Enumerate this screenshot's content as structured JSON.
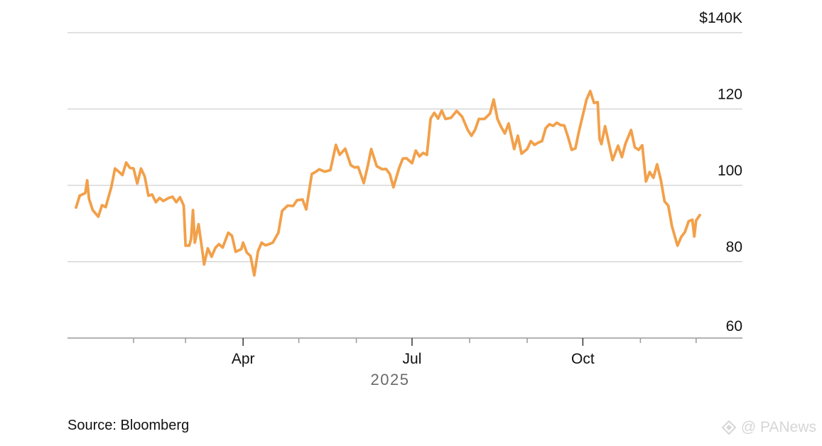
{
  "chart_data": {
    "type": "line",
    "title": "",
    "xlabel": "2025",
    "ylabel": "",
    "ylim": [
      60,
      140
    ],
    "y_ticks": [
      {
        "value": 140,
        "label": "$140K"
      },
      {
        "value": 120,
        "label": "120"
      },
      {
        "value": 100,
        "label": "100"
      },
      {
        "value": 80,
        "label": "80"
      },
      {
        "value": 60,
        "label": "60"
      }
    ],
    "x_range": [
      "2025-01-01",
      "2025-12-03"
    ],
    "x_ticks": [
      {
        "date": "2025-02-01",
        "label": ""
      },
      {
        "date": "2025-03-01",
        "label": ""
      },
      {
        "date": "2025-04-01",
        "label": "Apr"
      },
      {
        "date": "2025-05-01",
        "label": ""
      },
      {
        "date": "2025-06-01",
        "label": ""
      },
      {
        "date": "2025-07-01",
        "label": "Jul"
      },
      {
        "date": "2025-08-01",
        "label": ""
      },
      {
        "date": "2025-09-01",
        "label": ""
      },
      {
        "date": "2025-10-01",
        "label": "Oct"
      },
      {
        "date": "2025-11-01",
        "label": ""
      },
      {
        "date": "2025-12-01",
        "label": ""
      }
    ],
    "grid": true,
    "series": [
      {
        "color": "#f2a04a",
        "points": [
          [
            "2025-01-01",
            94.2
          ],
          [
            "2025-01-03",
            97.3
          ],
          [
            "2025-01-06",
            98.0
          ],
          [
            "2025-01-07",
            101.3
          ],
          [
            "2025-01-08",
            96.5
          ],
          [
            "2025-01-10",
            93.5
          ],
          [
            "2025-01-13",
            91.8
          ],
          [
            "2025-01-15",
            94.8
          ],
          [
            "2025-01-17",
            94.3
          ],
          [
            "2025-01-20",
            99.5
          ],
          [
            "2025-01-22",
            104.4
          ],
          [
            "2025-01-24",
            103.6
          ],
          [
            "2025-01-26",
            102.7
          ],
          [
            "2025-01-28",
            106.0
          ],
          [
            "2025-01-30",
            104.6
          ],
          [
            "2025-02-01",
            104.4
          ],
          [
            "2025-02-03",
            100.5
          ],
          [
            "2025-02-05",
            104.4
          ],
          [
            "2025-02-07",
            102.3
          ],
          [
            "2025-02-09",
            97.3
          ],
          [
            "2025-02-11",
            97.6
          ],
          [
            "2025-02-13",
            95.6
          ],
          [
            "2025-02-15",
            96.7
          ],
          [
            "2025-02-17",
            95.9
          ],
          [
            "2025-02-20",
            96.7
          ],
          [
            "2025-02-22",
            97.0
          ],
          [
            "2025-02-24",
            95.6
          ],
          [
            "2025-02-26",
            96.9
          ],
          [
            "2025-02-28",
            94.7
          ],
          [
            "2025-03-01",
            84.2
          ],
          [
            "2025-03-03",
            84.2
          ],
          [
            "2025-03-04",
            86.0
          ],
          [
            "2025-03-05",
            93.5
          ],
          [
            "2025-03-06",
            85.0
          ],
          [
            "2025-03-08",
            89.8
          ],
          [
            "2025-03-10",
            82.9
          ],
          [
            "2025-03-11",
            79.3
          ],
          [
            "2025-03-13",
            83.5
          ],
          [
            "2025-03-15",
            81.3
          ],
          [
            "2025-03-17",
            83.6
          ],
          [
            "2025-03-19",
            84.6
          ],
          [
            "2025-03-21",
            83.7
          ],
          [
            "2025-03-24",
            87.6
          ],
          [
            "2025-03-26",
            86.8
          ],
          [
            "2025-03-28",
            82.6
          ],
          [
            "2025-03-31",
            83.3
          ],
          [
            "2025-04-01",
            85.0
          ],
          [
            "2025-04-03",
            82.4
          ],
          [
            "2025-04-05",
            81.5
          ],
          [
            "2025-04-07",
            76.4
          ],
          [
            "2025-04-09",
            82.7
          ],
          [
            "2025-04-11",
            85.0
          ],
          [
            "2025-04-13",
            84.3
          ],
          [
            "2025-04-15",
            84.6
          ],
          [
            "2025-04-17",
            85.0
          ],
          [
            "2025-04-20",
            87.6
          ],
          [
            "2025-04-22",
            93.3
          ],
          [
            "2025-04-25",
            94.7
          ],
          [
            "2025-04-28",
            94.6
          ],
          [
            "2025-04-30",
            96.1
          ],
          [
            "2025-05-03",
            96.3
          ],
          [
            "2025-05-05",
            93.7
          ],
          [
            "2025-05-08",
            103.0
          ],
          [
            "2025-05-10",
            103.5
          ],
          [
            "2025-05-12",
            104.2
          ],
          [
            "2025-05-15",
            103.6
          ],
          [
            "2025-05-18",
            104.0
          ],
          [
            "2025-05-21",
            110.6
          ],
          [
            "2025-05-23",
            108.0
          ],
          [
            "2025-05-26",
            109.6
          ],
          [
            "2025-05-29",
            105.3
          ],
          [
            "2025-05-31",
            104.7
          ],
          [
            "2025-06-02",
            104.8
          ],
          [
            "2025-06-05",
            100.6
          ],
          [
            "2025-06-07",
            104.8
          ],
          [
            "2025-06-09",
            109.5
          ],
          [
            "2025-06-12",
            105.0
          ],
          [
            "2025-06-15",
            104.2
          ],
          [
            "2025-06-17",
            104.3
          ],
          [
            "2025-06-19",
            103.0
          ],
          [
            "2025-06-21",
            99.5
          ],
          [
            "2025-06-24",
            104.5
          ],
          [
            "2025-06-26",
            107.0
          ],
          [
            "2025-06-28",
            107.1
          ],
          [
            "2025-07-01",
            105.8
          ],
          [
            "2025-07-03",
            109.1
          ],
          [
            "2025-07-05",
            107.6
          ],
          [
            "2025-07-07",
            108.5
          ],
          [
            "2025-07-09",
            108.0
          ],
          [
            "2025-07-11",
            117.5
          ],
          [
            "2025-07-13",
            119.0
          ],
          [
            "2025-07-15",
            117.5
          ],
          [
            "2025-07-17",
            119.6
          ],
          [
            "2025-07-19",
            117.4
          ],
          [
            "2025-07-22",
            117.7
          ],
          [
            "2025-07-25",
            119.5
          ],
          [
            "2025-07-28",
            118.0
          ],
          [
            "2025-07-31",
            114.5
          ],
          [
            "2025-08-02",
            113.0
          ],
          [
            "2025-08-04",
            114.6
          ],
          [
            "2025-08-06",
            117.4
          ],
          [
            "2025-08-09",
            117.4
          ],
          [
            "2025-08-12",
            118.8
          ],
          [
            "2025-08-14",
            122.5
          ],
          [
            "2025-08-16",
            117.4
          ],
          [
            "2025-08-18",
            115.3
          ],
          [
            "2025-08-20",
            113.6
          ],
          [
            "2025-08-22",
            116.2
          ],
          [
            "2025-08-25",
            109.5
          ],
          [
            "2025-08-27",
            113.0
          ],
          [
            "2025-08-29",
            108.3
          ],
          [
            "2025-09-01",
            109.5
          ],
          [
            "2025-09-03",
            111.6
          ],
          [
            "2025-09-05",
            110.6
          ],
          [
            "2025-09-07",
            111.2
          ],
          [
            "2025-09-09",
            111.6
          ],
          [
            "2025-09-11",
            115.0
          ],
          [
            "2025-09-13",
            116.0
          ],
          [
            "2025-09-15",
            115.6
          ],
          [
            "2025-09-17",
            116.4
          ],
          [
            "2025-09-19",
            115.8
          ],
          [
            "2025-09-21",
            115.7
          ],
          [
            "2025-09-23",
            112.7
          ],
          [
            "2025-09-25",
            109.3
          ],
          [
            "2025-09-27",
            109.7
          ],
          [
            "2025-09-29",
            114.3
          ],
          [
            "2025-10-01",
            118.4
          ],
          [
            "2025-10-03",
            122.5
          ],
          [
            "2025-10-05",
            124.7
          ],
          [
            "2025-10-07",
            121.6
          ],
          [
            "2025-10-09",
            121.8
          ],
          [
            "2025-10-10",
            112.2
          ],
          [
            "2025-10-11",
            110.8
          ],
          [
            "2025-10-13",
            115.5
          ],
          [
            "2025-10-15",
            111.0
          ],
          [
            "2025-10-17",
            106.6
          ],
          [
            "2025-10-20",
            110.4
          ],
          [
            "2025-10-22",
            107.4
          ],
          [
            "2025-10-24",
            111.0
          ],
          [
            "2025-10-27",
            114.5
          ],
          [
            "2025-10-29",
            110.0
          ],
          [
            "2025-10-31",
            109.3
          ],
          [
            "2025-11-02",
            110.5
          ],
          [
            "2025-11-04",
            101.0
          ],
          [
            "2025-11-06",
            103.5
          ],
          [
            "2025-11-08",
            102.0
          ],
          [
            "2025-11-10",
            105.5
          ],
          [
            "2025-11-12",
            101.5
          ],
          [
            "2025-11-14",
            95.8
          ],
          [
            "2025-11-16",
            94.7
          ],
          [
            "2025-11-18",
            89.3
          ],
          [
            "2025-11-21",
            84.2
          ],
          [
            "2025-11-23",
            86.5
          ],
          [
            "2025-11-25",
            87.8
          ],
          [
            "2025-11-27",
            90.6
          ],
          [
            "2025-11-29",
            91.0
          ],
          [
            "2025-11-30",
            86.6
          ],
          [
            "2025-12-01",
            90.8
          ],
          [
            "2025-12-03",
            92.2
          ]
        ]
      }
    ]
  },
  "footer": {
    "source": "Source: Bloomberg"
  },
  "watermark": {
    "text": "@ PANews",
    "color": "#d6d6d6"
  }
}
